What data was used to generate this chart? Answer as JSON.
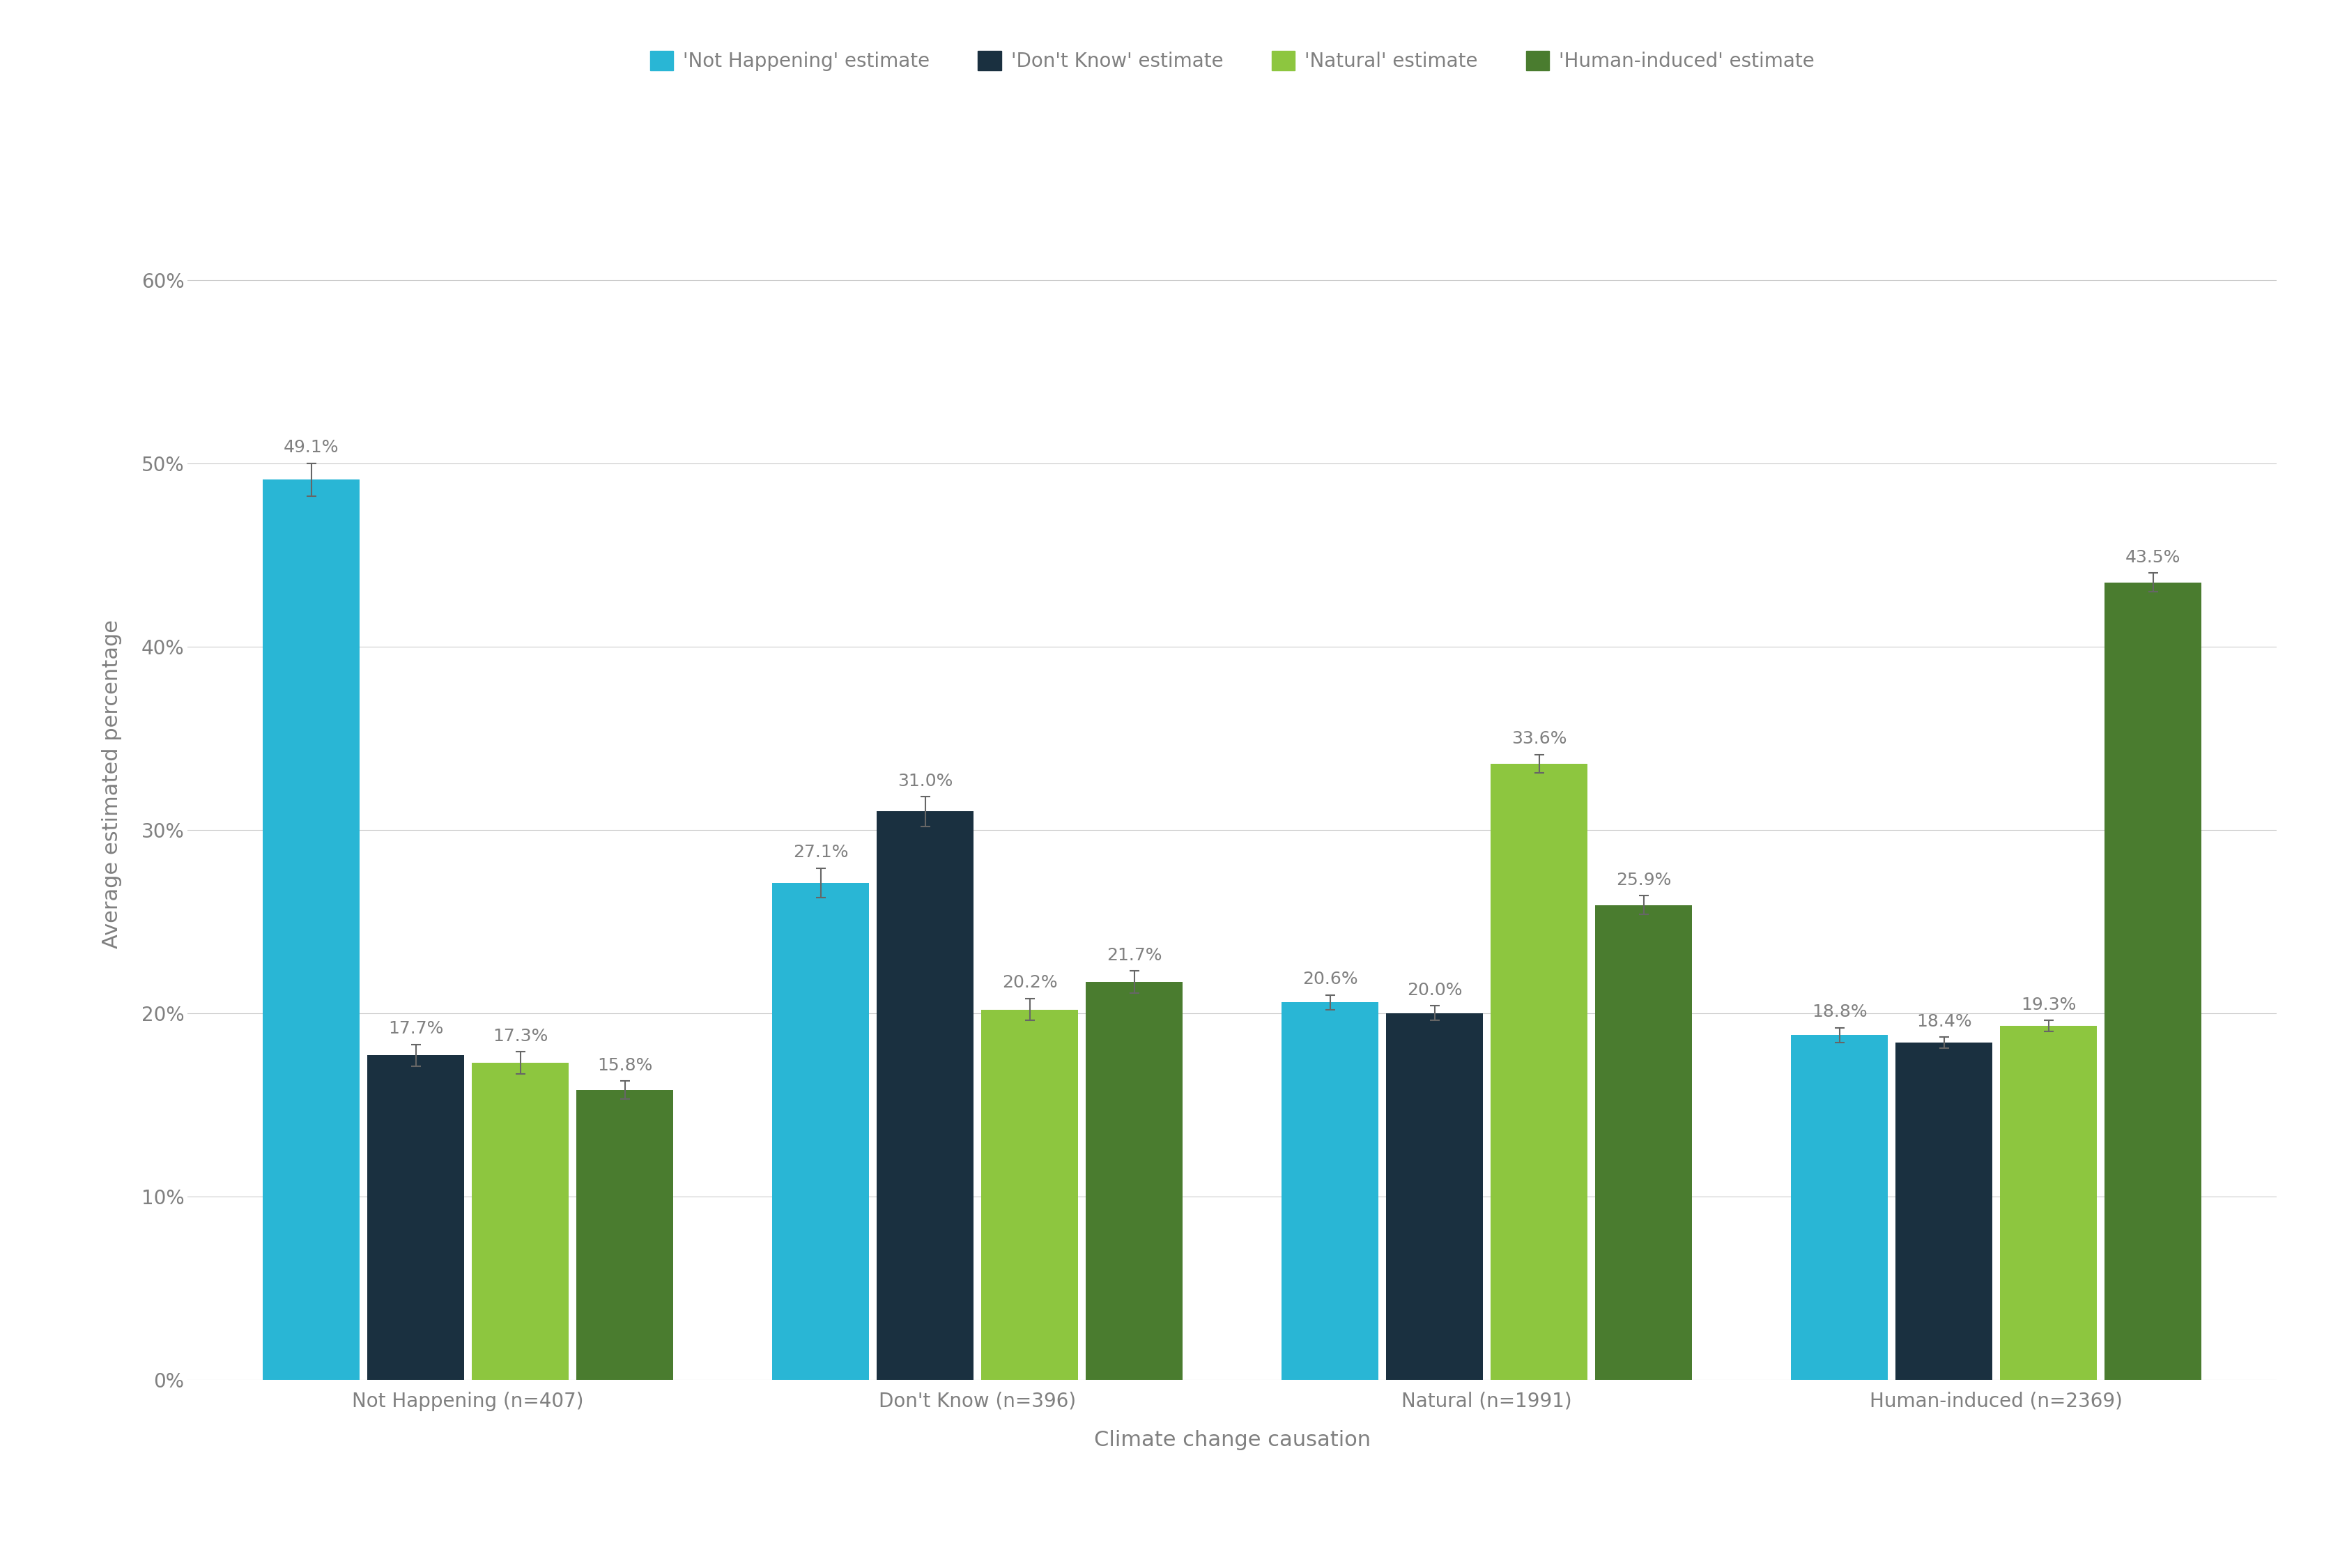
{
  "groups": [
    "Not Happening (n=407)",
    "Don't Know (n=396)",
    "Natural (n=1991)",
    "Human-induced (n=2369)"
  ],
  "series": [
    {
      "label": "'Not Happening' estimate",
      "color": "#29b6d5",
      "values": [
        49.1,
        27.1,
        20.6,
        18.8
      ],
      "errors": [
        0.9,
        0.8,
        0.4,
        0.4
      ]
    },
    {
      "label": "'Don't Know' estimate",
      "color": "#1a3040",
      "values": [
        17.7,
        31.0,
        20.0,
        18.4
      ],
      "errors": [
        0.6,
        0.8,
        0.4,
        0.3
      ]
    },
    {
      "label": "'Natural' estimate",
      "color": "#8dc63f",
      "values": [
        17.3,
        20.2,
        33.6,
        19.3
      ],
      "errors": [
        0.6,
        0.6,
        0.5,
        0.3
      ]
    },
    {
      "label": "'Human-induced' estimate",
      "color": "#4a7c2f",
      "values": [
        15.8,
        21.7,
        25.9,
        43.5
      ],
      "errors": [
        0.5,
        0.6,
        0.5,
        0.5
      ]
    }
  ],
  "ylabel": "Average estimated percentage",
  "xlabel": "Climate change causation",
  "ylim": [
    0,
    65
  ],
  "yticks": [
    0,
    10,
    20,
    30,
    40,
    50,
    60
  ],
  "ytick_labels": [
    "0%",
    "10%",
    "20%",
    "30%",
    "40%",
    "50%",
    "60%"
  ],
  "background_color": "#ffffff",
  "grid_color": "#cccccc",
  "text_color": "#808080",
  "bar_width": 0.19,
  "value_label_fontsize": 18,
  "axis_label_fontsize": 22,
  "tick_label_fontsize": 20,
  "legend_fontsize": 20
}
